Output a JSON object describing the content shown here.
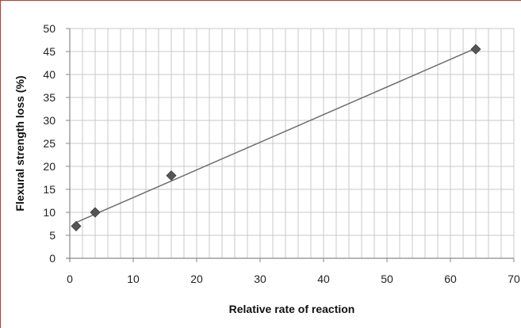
{
  "chart_data": {
    "type": "scatter",
    "title": "",
    "xlabel": "Relative rate of reaction",
    "ylabel": "Flexural strength loss (%)",
    "xlim": [
      0,
      70
    ],
    "ylim": [
      0,
      50
    ],
    "x_ticks": [
      0,
      10,
      20,
      30,
      40,
      50,
      60,
      70
    ],
    "y_ticks": [
      0,
      5,
      10,
      15,
      20,
      25,
      30,
      35,
      40,
      45,
      50
    ],
    "x_tick_labels": [
      "0",
      "10",
      "20",
      "30",
      "40",
      "50",
      "60",
      "70"
    ],
    "y_tick_labels": [
      "0",
      "5",
      "10",
      "15",
      "20",
      "25",
      "30",
      "35",
      "40",
      "45",
      "50"
    ],
    "grid": true,
    "marker": "diamond",
    "series": [
      {
        "x": [
          1,
          4,
          16,
          64
        ],
        "y": [
          7,
          10,
          18,
          45.5
        ]
      }
    ],
    "trendline": {
      "type": "linear",
      "x": [
        1,
        64
      ],
      "y": [
        7.8,
        45.7
      ]
    },
    "colors": {
      "marker": "#555555",
      "trendline": "#6e6e6e",
      "grid": "#c8c8c8",
      "axis": "#8a8a8a",
      "frame": "#c0392b"
    }
  }
}
